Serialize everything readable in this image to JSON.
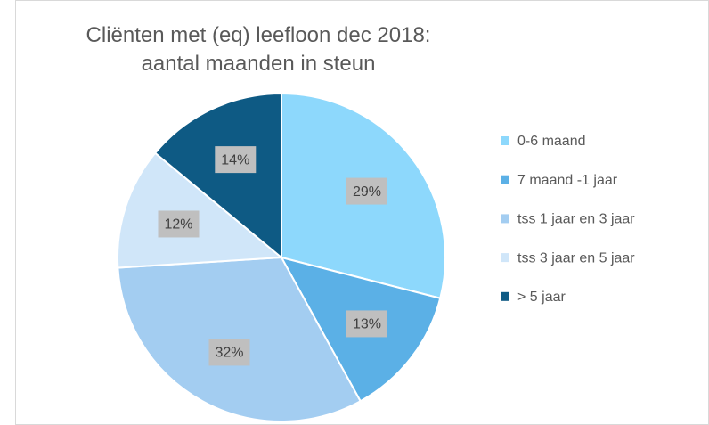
{
  "chart_data": {
    "type": "pie",
    "title": "Cliënten met (eq) leefloon dec 2018: aantal maanden in steun",
    "categories": [
      "0-6 maand",
      "7 maand -1 jaar",
      "tss 1 jaar en 3 jaar",
      "tss 3 jaar en 5 jaar",
      "> 5 jaar"
    ],
    "values": [
      29,
      13,
      32,
      12,
      14
    ],
    "value_labels": [
      "29%",
      "13%",
      "32%",
      "12%",
      "14%"
    ],
    "colors": [
      "#8dd8fc",
      "#5bb0e6",
      "#a3cdf1",
      "#d0e6f9",
      "#0e5a84"
    ],
    "legend": "right"
  }
}
